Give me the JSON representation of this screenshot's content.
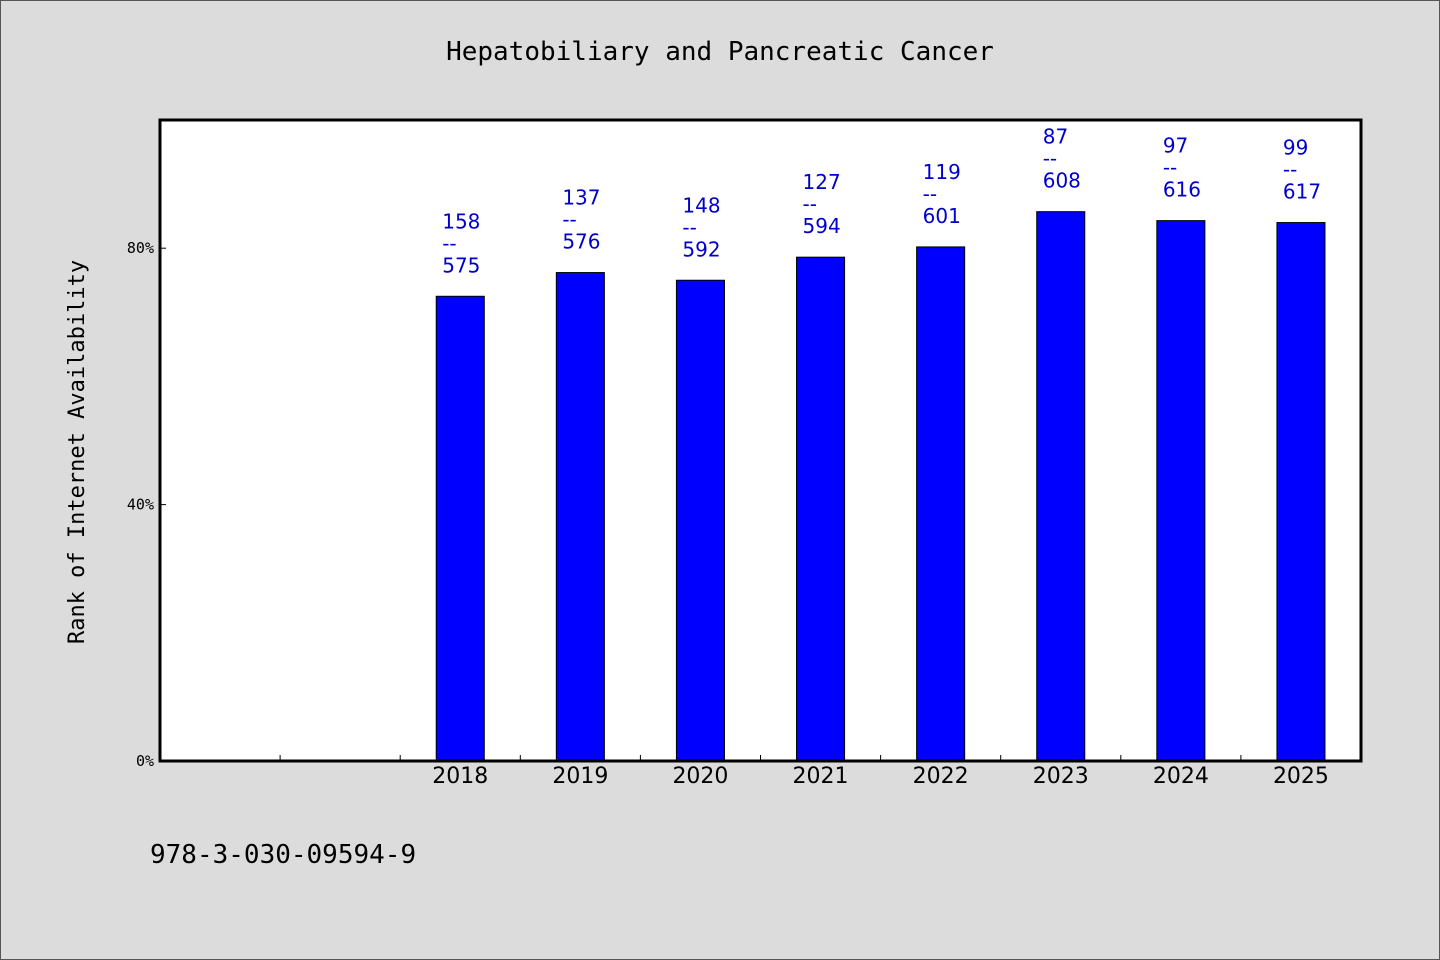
{
  "chart_data": {
    "type": "bar",
    "title": "Hepatobiliary and Pancreatic Cancer",
    "xlabel": "",
    "ylabel": "Rank of Internet Availability",
    "categories": [
      "",
      "",
      "2018",
      "2019",
      "2020",
      "2021",
      "2022",
      "2023",
      "2024",
      "2025"
    ],
    "values": [
      null,
      null,
      72.5,
      76.2,
      75.0,
      78.6,
      80.2,
      85.7,
      84.3,
      84.0
    ],
    "bar_labels": [
      null,
      null,
      [
        "158",
        "--",
        "575"
      ],
      [
        "137",
        "--",
        "576"
      ],
      [
        "148",
        "--",
        "592"
      ],
      [
        "127",
        "--",
        "594"
      ],
      [
        "119",
        "--",
        "601"
      ],
      [
        "87",
        "--",
        "608"
      ],
      [
        "97",
        "--",
        "616"
      ],
      [
        "99",
        "--",
        "617"
      ]
    ],
    "yticks": [
      0,
      40,
      80
    ],
    "ytick_labels": [
      "0%",
      "40%",
      "80%"
    ],
    "ylim": [
      0,
      100
    ],
    "grid": false,
    "legend": "none",
    "bar_color": "#0000ff",
    "label_color": "#0000cc"
  },
  "footer": {
    "isbn": "978-3-030-09594-9"
  }
}
